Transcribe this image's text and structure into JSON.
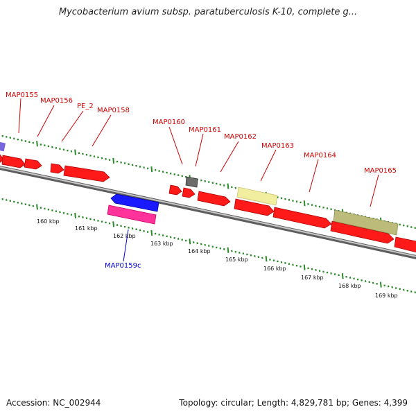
{
  "title": "Mycobacterium avium subsp. paratuberculosis K-10, complete g...",
  "footer": {
    "accession": "Accession: NC_002944",
    "summary": "Topology: circular; Length: 4,829,781 bp; Genes: 4,399"
  },
  "colors": {
    "forward_gene": "#ff1a1a",
    "reverse_gene": "#1a1aff",
    "pe_gene": "#ff3399",
    "pseudo_gene": "#666666",
    "rrna_like": "#eeeeaa",
    "other_gene": "#b8b880",
    "backbone": "#8a8a8a",
    "tick": "#2a8a2a",
    "forward_label": "#cc0000",
    "reverse_label": "#0000cc"
  },
  "scale_labels": [
    "160 kbp",
    "161 kbp",
    "162 kbp",
    "163 kbp",
    "164 kbp",
    "165 kbp",
    "166 kbp",
    "167 kbp",
    "168 kbp",
    "169 kbp"
  ],
  "gene_labels": [
    {
      "name": "MAP0155",
      "strand": "forward"
    },
    {
      "name": "MAP0156",
      "strand": "forward"
    },
    {
      "name": "PE_2",
      "strand": "forward"
    },
    {
      "name": "MAP0158",
      "strand": "forward"
    },
    {
      "name": "MAP0160",
      "strand": "forward"
    },
    {
      "name": "MAP0161",
      "strand": "forward"
    },
    {
      "name": "MAP0162",
      "strand": "forward"
    },
    {
      "name": "MAP0163",
      "strand": "forward"
    },
    {
      "name": "MAP0164",
      "strand": "forward"
    },
    {
      "name": "MAP0165",
      "strand": "forward"
    },
    {
      "name": "MAP0159c",
      "strand": "reverse"
    }
  ]
}
